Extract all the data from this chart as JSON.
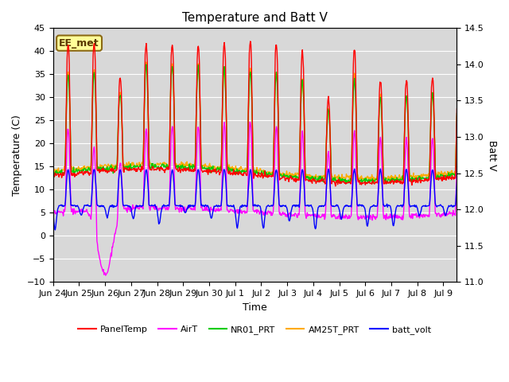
{
  "title": "Temperature and Batt V",
  "xlabel": "Time",
  "ylabel_left": "Temperature (C)",
  "ylabel_right": "Batt V",
  "annotation": "EE_met",
  "ylim_left": [
    -10,
    45
  ],
  "ylim_right": [
    11.0,
    14.5
  ],
  "yticks_left": [
    -10,
    -5,
    0,
    5,
    10,
    15,
    20,
    25,
    30,
    35,
    40,
    45
  ],
  "yticks_right": [
    11.0,
    11.5,
    12.0,
    12.5,
    13.0,
    13.5,
    14.0,
    14.5
  ],
  "x_tick_positions": [
    0,
    1,
    2,
    3,
    4,
    5,
    6,
    7,
    8,
    9,
    10,
    11,
    12,
    13,
    14,
    15
  ],
  "x_tick_labels": [
    "Jun 24",
    "Jun 25",
    "Jun 26",
    "Jun 27",
    "Jun 28",
    "Jun 29",
    "Jun 30",
    "Jul 1",
    "Jul 2",
    "Jul 3",
    "Jul 4",
    "Jul 5",
    "Jul 6",
    "Jul 7",
    "Jul 8",
    "Jul 9"
  ],
  "xlim": [
    0,
    15.5
  ],
  "background_color": "#ffffff",
  "plot_bg_color": "#d8d8d8",
  "grid_color": "#ffffff",
  "series": {
    "PanelTemp": {
      "color": "#ff0000",
      "lw": 1.0
    },
    "AirT": {
      "color": "#ff00ff",
      "lw": 1.0
    },
    "NR01_PRT": {
      "color": "#00cc00",
      "lw": 1.0
    },
    "AM25T_PRT": {
      "color": "#ffaa00",
      "lw": 1.0
    },
    "batt_volt": {
      "color": "#0000ff",
      "lw": 1.0
    }
  },
  "figsize": [
    6.4,
    4.8
  ],
  "dpi": 100
}
